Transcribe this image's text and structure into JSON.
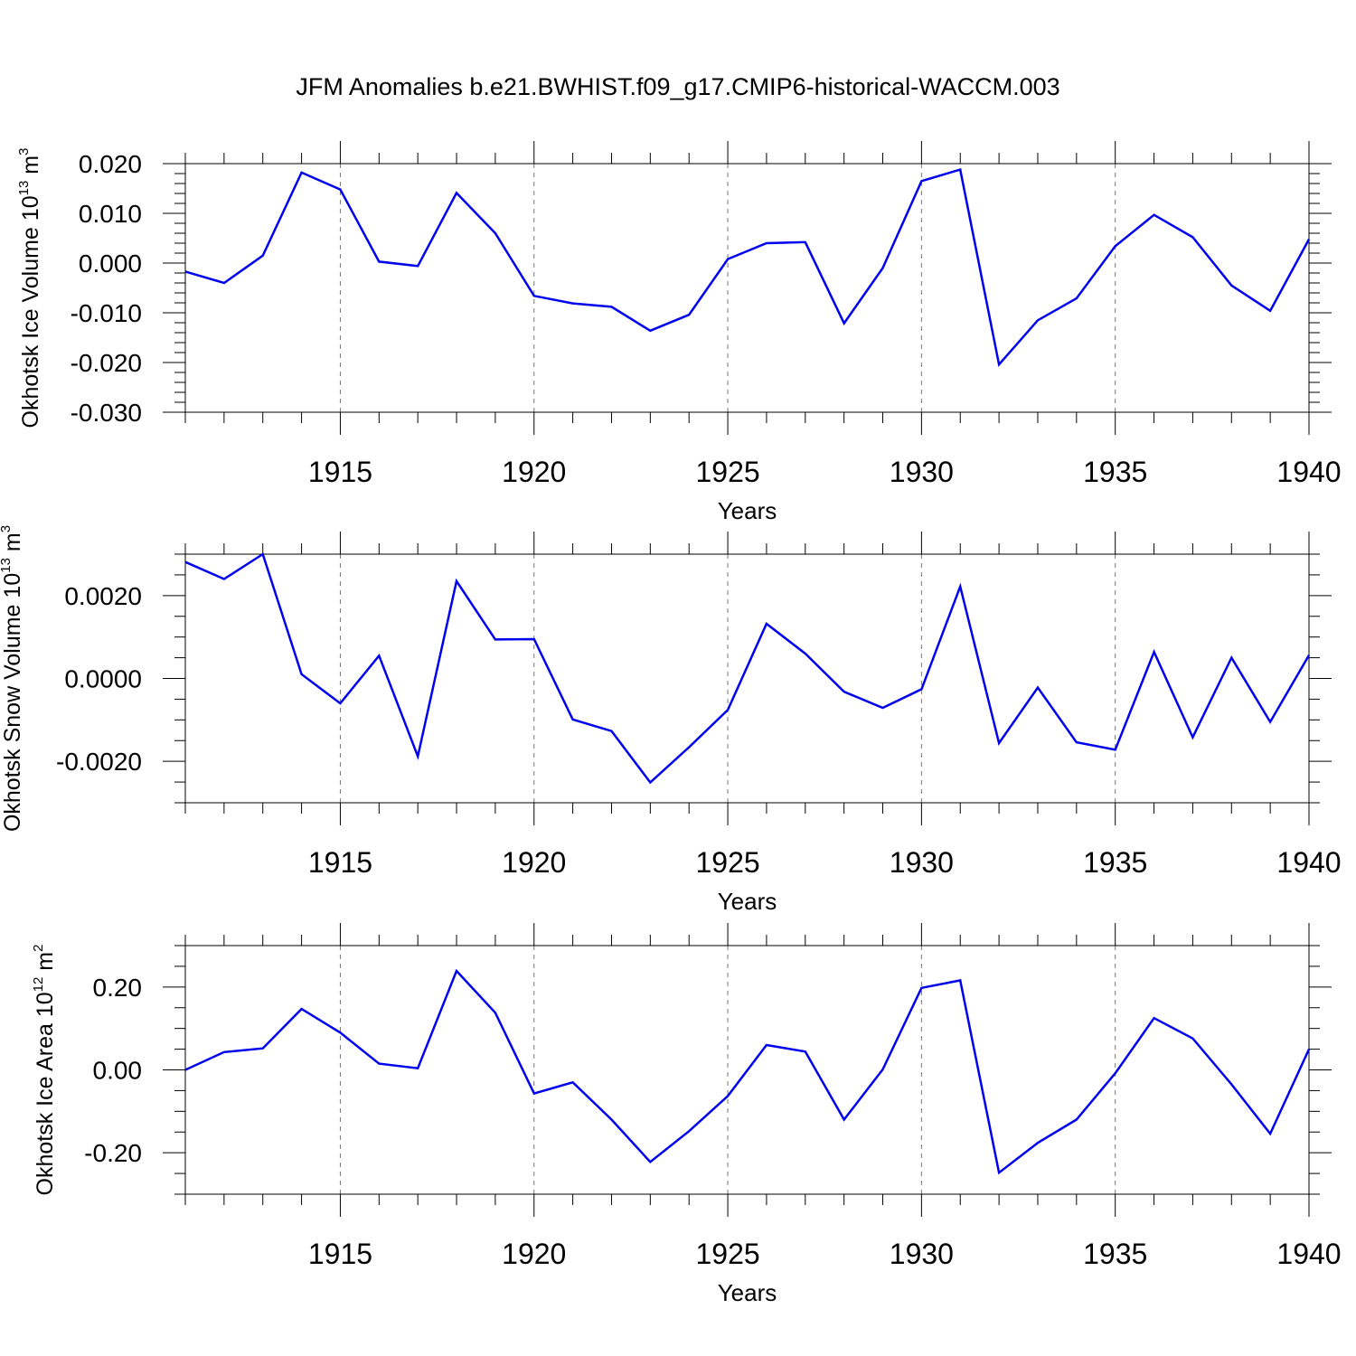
{
  "title": "JFM Anomalies b.e21.BWHIST.f09_g17.CMIP6-historical-WACCM.003",
  "colors": {
    "line": "#0000ee",
    "axes": "#000000",
    "grid": "#777777"
  },
  "chart_data": [
    {
      "type": "line",
      "ylabel": {
        "text": "Okhotsk Ice Volume 10",
        "exp": "13",
        "unit": " m",
        "unit_exp": "3"
      },
      "xlabel": "Years",
      "xlim": [
        1911,
        1940
      ],
      "ylim": [
        -0.03,
        0.02
      ],
      "xticks": [
        1915,
        1920,
        1925,
        1930,
        1935,
        1940
      ],
      "xtick_labels": [
        "1915",
        "1920",
        "1925",
        "1930",
        "1935",
        "1940"
      ],
      "yticks": [
        0.02,
        0.01,
        0.0,
        -0.01,
        -0.02,
        -0.03
      ],
      "ytick_labels": [
        "0.020",
        "0.010",
        "0.000",
        "-0.010",
        "-0.020",
        "-0.030"
      ],
      "yminor_step": 0.002,
      "grid": "vertical dashed at major x ticks",
      "x": [
        1911,
        1912,
        1913,
        1914,
        1915,
        1916,
        1917,
        1918,
        1919,
        1920,
        1921,
        1922,
        1923,
        1924,
        1925,
        1926,
        1927,
        1928,
        1929,
        1930,
        1931,
        1932,
        1933,
        1934,
        1935,
        1936,
        1937,
        1938,
        1939,
        1940
      ],
      "y": [
        -0.0017,
        -0.004,
        0.0015,
        0.0182,
        0.0148,
        0.0003,
        -0.0006,
        0.0141,
        0.006,
        -0.0066,
        -0.0081,
        -0.0088,
        -0.0136,
        -0.0104,
        0.0008,
        0.004,
        0.0042,
        -0.0121,
        -0.001,
        0.0165,
        0.0188,
        -0.0204,
        -0.0115,
        -0.0071,
        0.0034,
        0.0097,
        0.0052,
        -0.0045,
        -0.0096,
        0.0048
      ]
    },
    {
      "type": "line",
      "ylabel": {
        "text": "Okhotsk Snow Volume 10",
        "exp": "13",
        "unit": " m",
        "unit_exp": "3"
      },
      "xlabel": "Years",
      "xlim": [
        1911,
        1940
      ],
      "ylim": [
        -0.003,
        0.003
      ],
      "xticks": [
        1915,
        1920,
        1925,
        1930,
        1935,
        1940
      ],
      "xtick_labels": [
        "1915",
        "1920",
        "1925",
        "1930",
        "1935",
        "1940"
      ],
      "yticks": [
        0.002,
        0.0,
        -0.002
      ],
      "ytick_labels": [
        "0.0020",
        "0.0000",
        "-0.0020"
      ],
      "yminor_step": 0.0005,
      "grid": "vertical dashed at major x ticks",
      "x": [
        1911,
        1912,
        1913,
        1914,
        1915,
        1916,
        1917,
        1918,
        1919,
        1920,
        1921,
        1922,
        1923,
        1924,
        1925,
        1926,
        1927,
        1928,
        1929,
        1930,
        1931,
        1932,
        1933,
        1934,
        1935,
        1936,
        1937,
        1938,
        1939,
        1940
      ],
      "y": [
        0.00281,
        0.0024,
        0.003,
        0.0001,
        -0.0006,
        0.00055,
        -0.00188,
        0.00235,
        0.00094,
        0.00095,
        -0.00099,
        -0.00127,
        -0.00251,
        -0.00166,
        -0.00076,
        0.00132,
        0.0006,
        -0.00032,
        -0.00071,
        -0.00026,
        0.00222,
        -0.00156,
        -0.00022,
        -0.00154,
        -0.00172,
        0.00064,
        -0.00142,
        0.0005,
        -0.00105,
        0.00056
      ]
    },
    {
      "type": "line",
      "ylabel": {
        "text": "Okhotsk Ice Area 10",
        "exp": "12",
        "unit": " m",
        "unit_exp": "2"
      },
      "xlabel": "Years",
      "xlim": [
        1911,
        1940
      ],
      "ylim": [
        -0.3,
        0.3
      ],
      "xticks": [
        1915,
        1920,
        1925,
        1930,
        1935,
        1940
      ],
      "xtick_labels": [
        "1915",
        "1920",
        "1925",
        "1930",
        "1935",
        "1940"
      ],
      "yticks": [
        0.2,
        0.0,
        -0.2
      ],
      "ytick_labels": [
        "0.20",
        "0.00",
        "-0.20"
      ],
      "yminor_step": 0.05,
      "grid": "vertical dashed at major x ticks",
      "x": [
        1911,
        1912,
        1913,
        1914,
        1915,
        1916,
        1917,
        1918,
        1919,
        1920,
        1921,
        1922,
        1923,
        1924,
        1925,
        1926,
        1927,
        1928,
        1929,
        1930,
        1931,
        1932,
        1933,
        1934,
        1935,
        1936,
        1937,
        1938,
        1939,
        1940
      ],
      "y": [
        0.0,
        0.043,
        0.052,
        0.147,
        0.09,
        0.015,
        0.004,
        0.239,
        0.138,
        -0.057,
        -0.03,
        -0.12,
        -0.222,
        -0.148,
        -0.063,
        0.06,
        0.044,
        -0.12,
        0.001,
        0.198,
        0.216,
        -0.248,
        -0.176,
        -0.12,
        -0.008,
        0.125,
        0.076,
        -0.035,
        -0.154,
        0.05
      ]
    }
  ]
}
